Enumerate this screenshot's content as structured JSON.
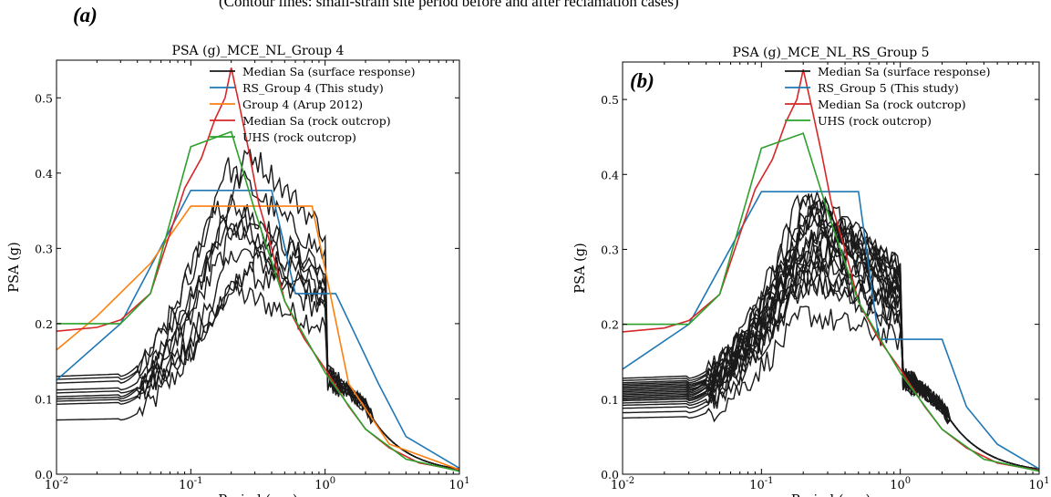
{
  "caption": "(Contour lines: small-strain site period before and after reclamation cases)",
  "panel_a_label": "(a)",
  "panel_b_label": "(b)",
  "chart_data": [
    {
      "type": "line",
      "title": "PSA (g)_MCE_NL_Group 4",
      "xlabel": "Period (sec)",
      "ylabel": "PSA (g)",
      "xscale": "log",
      "xlim": [
        0.01,
        10
      ],
      "ylim": [
        0,
        0.55
      ],
      "xticks": [
        {
          "v": 0.01,
          "base": "10",
          "exp": "-2"
        },
        {
          "v": 0.1,
          "base": "10",
          "exp": "-1"
        },
        {
          "v": 1,
          "base": "10",
          "exp": "0"
        },
        {
          "v": 10,
          "base": "10",
          "exp": "1"
        }
      ],
      "yticks": [
        "0.0",
        "0.1",
        "0.2",
        "0.3",
        "0.4",
        "0.5"
      ],
      "legend_position": "top-right",
      "legend": [
        {
          "label": "Median Sa (surface response)",
          "color": "#1a1a1a"
        },
        {
          "label": "RS_Group 4 (This study)",
          "color": "#1f77b4"
        },
        {
          "label": "Group 4 (Arup 2012)",
          "color": "#ff7f0e"
        },
        {
          "label": "Median Sa (rock outcrop)",
          "color": "#d62728"
        },
        {
          "label": "UHS (rock outcrop)",
          "color": "#2ca02c"
        }
      ],
      "design_series": [
        {
          "name": "RS_Group 4 (This study)",
          "color": "#1f77b4",
          "x": [
            0.01,
            0.03,
            0.1,
            0.4,
            0.6,
            1.2,
            2.5,
            4,
            10
          ],
          "y": [
            0.125,
            0.2,
            0.377,
            0.377,
            0.24,
            0.24,
            0.12,
            0.05,
            0.008
          ]
        },
        {
          "name": "Group 4 (Arup 2012)",
          "color": "#ff7f0e",
          "x": [
            0.01,
            0.02,
            0.05,
            0.1,
            0.8,
            1.5,
            3,
            10
          ],
          "y": [
            0.165,
            0.21,
            0.28,
            0.356,
            0.356,
            0.12,
            0.04,
            0.006
          ]
        },
        {
          "name": "Median Sa (rock outcrop)",
          "color": "#d62728",
          "x": [
            0.01,
            0.02,
            0.03,
            0.05,
            0.07,
            0.09,
            0.12,
            0.15,
            0.18,
            0.2,
            0.23,
            0.27,
            0.32,
            0.4,
            0.5,
            0.7,
            1,
            1.5,
            2,
            3,
            5,
            10
          ],
          "y": [
            0.19,
            0.195,
            0.205,
            0.24,
            0.32,
            0.38,
            0.42,
            0.47,
            0.5,
            0.54,
            0.49,
            0.43,
            0.36,
            0.3,
            0.23,
            0.18,
            0.14,
            0.09,
            0.06,
            0.035,
            0.015,
            0.005
          ]
        },
        {
          "name": "UHS (rock outcrop)",
          "color": "#2ca02c",
          "x": [
            0.01,
            0.03,
            0.05,
            0.1,
            0.2,
            0.3,
            0.5,
            1,
            2,
            4,
            10
          ],
          "y": [
            0.2,
            0.2,
            0.24,
            0.435,
            0.455,
            0.35,
            0.23,
            0.135,
            0.06,
            0.02,
            0.004
          ]
        }
      ],
      "response_curves": {
        "name": "Median Sa (surface response)",
        "color": "#1a1a1a",
        "count": 10,
        "low_period_values": [
          0.072,
          0.093,
          0.097,
          0.1,
          0.103,
          0.108,
          0.112,
          0.121,
          0.126,
          0.13
        ],
        "peak_values": [
          0.245,
          0.3,
          0.27,
          0.33,
          0.36,
          0.29,
          0.35,
          0.41,
          0.43,
          0.35
        ],
        "peak_periods": [
          0.19,
          0.22,
          0.25,
          0.17,
          0.2,
          0.3,
          0.24,
          0.18,
          0.27,
          0.15
        ]
      }
    },
    {
      "type": "line",
      "title": "PSA (g)_MCE_NL_RS_Group 5",
      "xlabel": "Period (sec)",
      "ylabel": "PSA (g)",
      "xscale": "log",
      "xlim": [
        0.01,
        10
      ],
      "ylim": [
        0,
        0.55
      ],
      "xticks": [
        {
          "v": 0.01,
          "base": "10",
          "exp": "-2"
        },
        {
          "v": 0.1,
          "base": "10",
          "exp": "-1"
        },
        {
          "v": 1,
          "base": "10",
          "exp": "0"
        },
        {
          "v": 10,
          "base": "10",
          "exp": "1"
        }
      ],
      "yticks": [
        "0.0",
        "0.1",
        "0.2",
        "0.3",
        "0.4",
        "0.5"
      ],
      "legend_position": "top-right",
      "legend": [
        {
          "label": "Median Sa (surface response)",
          "color": "#1a1a1a"
        },
        {
          "label": "RS_Group 5 (This study)",
          "color": "#1f77b4"
        },
        {
          "label": "Median Sa (rock outcrop)",
          "color": "#d62728"
        },
        {
          "label": "UHS (rock outcrop)",
          "color": "#2ca02c"
        }
      ],
      "design_series": [
        {
          "name": "RS_Group 5 (This study)",
          "color": "#1f77b4",
          "x": [
            0.01,
            0.03,
            0.1,
            0.5,
            0.7,
            2,
            3,
            5,
            10
          ],
          "y": [
            0.14,
            0.2,
            0.377,
            0.377,
            0.18,
            0.18,
            0.09,
            0.04,
            0.007
          ]
        },
        {
          "name": "Median Sa (rock outcrop)",
          "color": "#d62728",
          "x": [
            0.01,
            0.02,
            0.03,
            0.05,
            0.07,
            0.09,
            0.12,
            0.15,
            0.18,
            0.2,
            0.23,
            0.27,
            0.32,
            0.4,
            0.5,
            0.7,
            1,
            1.5,
            2,
            3,
            5,
            10
          ],
          "y": [
            0.19,
            0.195,
            0.205,
            0.24,
            0.32,
            0.38,
            0.42,
            0.47,
            0.5,
            0.54,
            0.49,
            0.43,
            0.36,
            0.3,
            0.23,
            0.18,
            0.14,
            0.09,
            0.06,
            0.035,
            0.015,
            0.005
          ]
        },
        {
          "name": "UHS (rock outcrop)",
          "color": "#2ca02c",
          "x": [
            0.01,
            0.03,
            0.05,
            0.1,
            0.2,
            0.3,
            0.5,
            1,
            2,
            4,
            10
          ],
          "y": [
            0.2,
            0.2,
            0.24,
            0.435,
            0.455,
            0.35,
            0.23,
            0.135,
            0.06,
            0.02,
            0.004
          ]
        }
      ],
      "response_curves": {
        "name": "Median Sa (surface response)",
        "color": "#1a1a1a",
        "count": 20,
        "low_period_values": [
          0.075,
          0.082,
          0.088,
          0.092,
          0.095,
          0.098,
          0.1,
          0.102,
          0.104,
          0.106,
          0.108,
          0.11,
          0.112,
          0.114,
          0.116,
          0.118,
          0.12,
          0.122,
          0.125,
          0.128
        ],
        "peak_values": [
          0.215,
          0.26,
          0.28,
          0.29,
          0.3,
          0.31,
          0.32,
          0.33,
          0.34,
          0.35,
          0.36,
          0.37,
          0.375,
          0.3,
          0.28,
          0.33,
          0.31,
          0.35,
          0.27,
          0.36
        ],
        "peak_periods": [
          0.2,
          0.18,
          0.22,
          0.25,
          0.19,
          0.21,
          0.23,
          0.27,
          0.2,
          0.24,
          0.22,
          0.19,
          0.21,
          0.3,
          0.17,
          0.26,
          0.28,
          0.23,
          0.16,
          0.25
        ]
      }
    }
  ]
}
